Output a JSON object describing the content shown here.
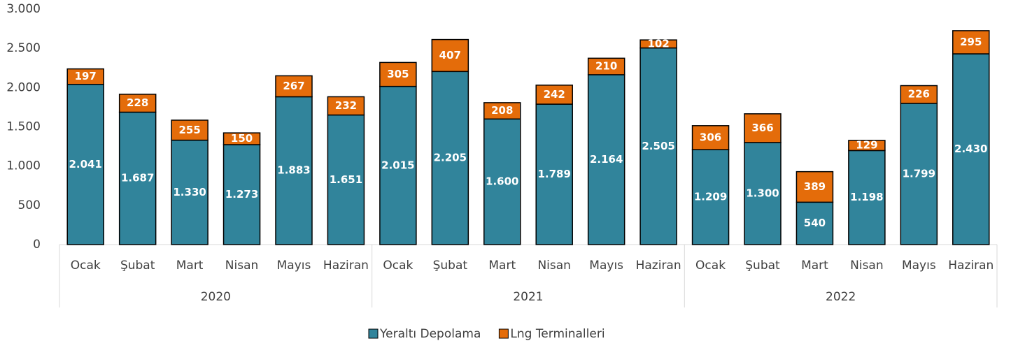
{
  "chart_data": {
    "type": "stacked_bar",
    "categories": [
      "Ocak",
      "Şubat",
      "Mart",
      "Nisan",
      "Mayıs",
      "Haziran",
      "Ocak",
      "Şubat",
      "Mart",
      "Nisan",
      "Mayıs",
      "Haziran",
      "Ocak",
      "Şubat",
      "Mart",
      "Nisan",
      "Mayıs",
      "Haziran"
    ],
    "groups": [
      "2020",
      "2021",
      "2022"
    ],
    "series": [
      {
        "name": "Yeraltı Depolama",
        "color": "#31849b",
        "values": [
          2041,
          1687,
          1330,
          1273,
          1883,
          1651,
          2015,
          2205,
          1600,
          1789,
          2164,
          2505,
          1209,
          1300,
          540,
          1198,
          1799,
          2430
        ],
        "value_labels": [
          "2.041",
          "1.687",
          "1.330",
          "1.273",
          "1.883",
          "1.651",
          "2.015",
          "2.205",
          "1.600",
          "1.789",
          "2.164",
          "2.505",
          "1.209",
          "1.300",
          "540",
          "1.198",
          "1.799",
          "2.430"
        ]
      },
      {
        "name": "Lng Terminalleri",
        "color": "#e46c0a",
        "values": [
          197,
          228,
          255,
          150,
          267,
          232,
          305,
          407,
          208,
          242,
          210,
          102,
          306,
          366,
          389,
          129,
          226,
          295
        ],
        "value_labels": [
          "197",
          "228",
          "255",
          "150",
          "267",
          "232",
          "305",
          "407",
          "208",
          "242",
          "210",
          "102",
          "306",
          "366",
          "389",
          "129",
          "226",
          "295"
        ]
      }
    ],
    "ylim": [
      0,
      3000
    ],
    "yticks": [
      0,
      500,
      {
        "value": 1000,
        "label": "1.000"
      },
      {
        "value": 1500,
        "label": "1.500"
      },
      {
        "value": 2000,
        "label": "2.000"
      },
      {
        "value": 2500,
        "label": "2.500"
      },
      {
        "value": 3000,
        "label": "3.000"
      }
    ],
    "legend": "bottom"
  }
}
